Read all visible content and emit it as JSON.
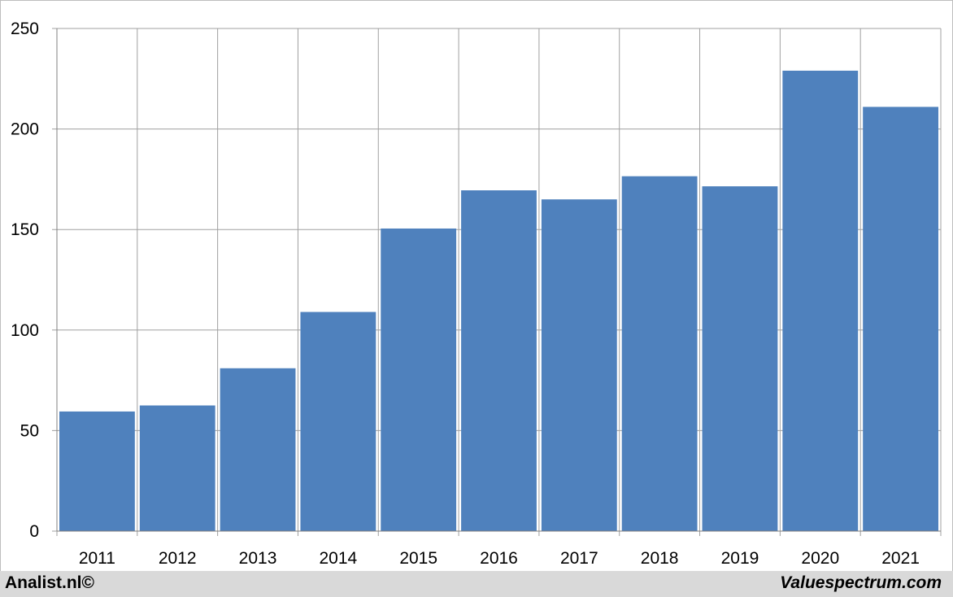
{
  "chart_data": {
    "type": "bar",
    "categories": [
      "2011",
      "2012",
      "2013",
      "2014",
      "2015",
      "2016",
      "2017",
      "2018",
      "2019",
      "2020",
      "2021"
    ],
    "values": [
      59.5,
      62.5,
      81,
      109,
      150.5,
      169.5,
      165,
      176.5,
      171.5,
      229,
      211
    ],
    "ylim": [
      0,
      250
    ],
    "yticks": [
      0,
      50,
      100,
      150,
      200,
      250
    ],
    "grid": true,
    "bar_color": "#4f81bd",
    "grid_color": "#a0a0a0"
  },
  "footer": {
    "left_text": "Analist.nl©",
    "right_text": "Valuespectrum.com"
  }
}
